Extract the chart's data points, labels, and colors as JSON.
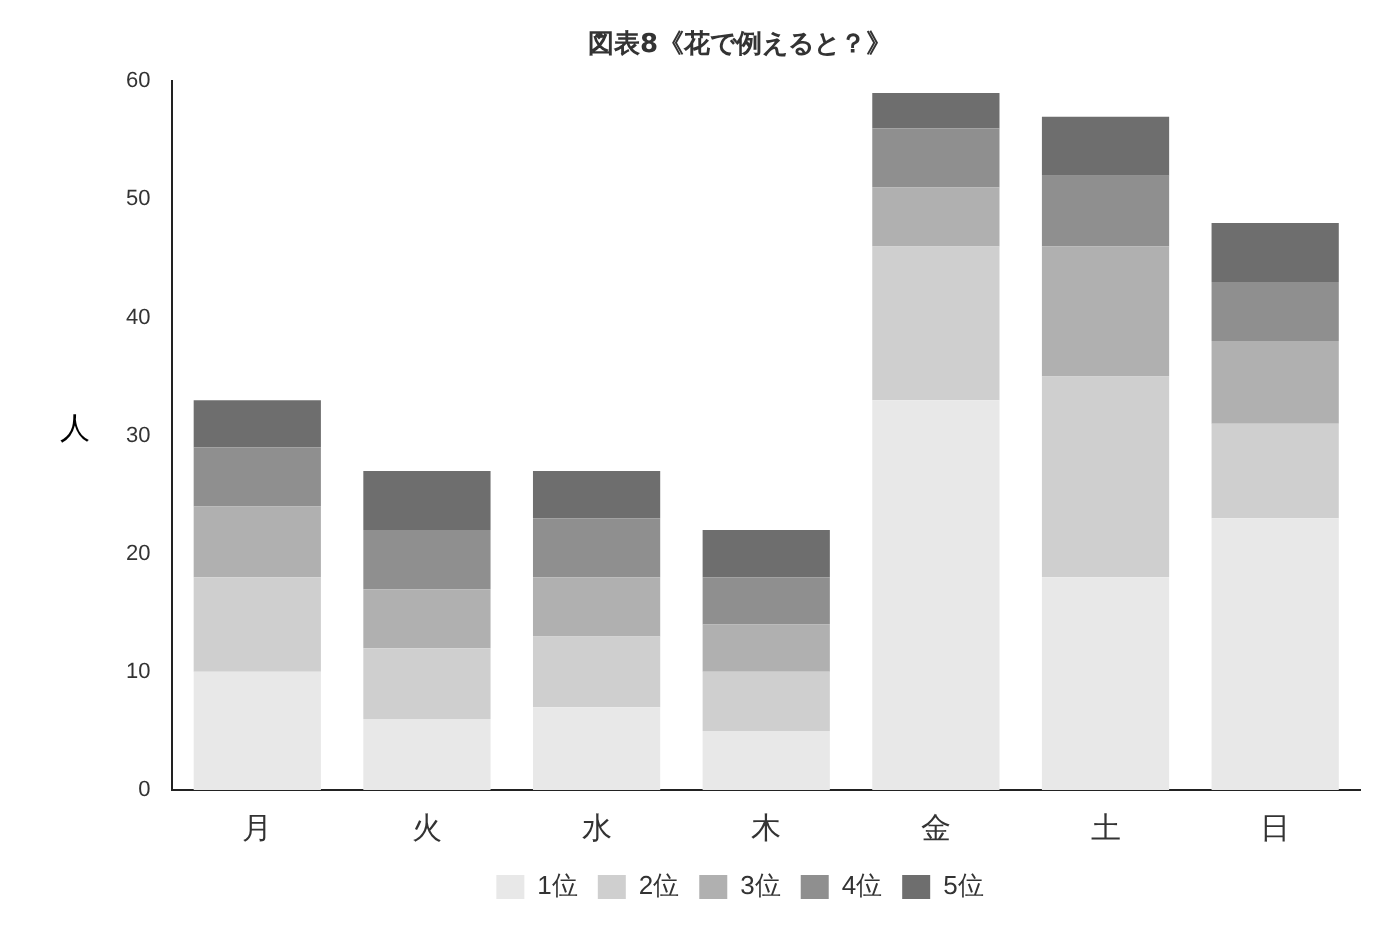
{
  "chart_data": {
    "type": "bar",
    "title": "図表8《花で例えると？》",
    "ylabel": "人",
    "categories": [
      "月",
      "火",
      "水",
      "木",
      "金",
      "土",
      "日"
    ],
    "stacked": true,
    "ylim": [
      0,
      60
    ],
    "yticks": [
      0,
      10,
      20,
      30,
      40,
      50,
      60
    ],
    "grid": false,
    "legend": "bottom",
    "series": [
      {
        "name": "1位",
        "color": "#e8e8e8",
        "values": [
          10,
          6,
          7,
          5,
          33,
          18,
          23
        ]
      },
      {
        "name": "2位",
        "color": "#cfcfcf",
        "values": [
          8,
          6,
          6,
          5,
          13,
          17,
          8
        ]
      },
      {
        "name": "3位",
        "color": "#b0b0b0",
        "values": [
          6,
          5,
          5,
          4,
          5,
          11,
          7
        ]
      },
      {
        "name": "4位",
        "color": "#8f8f8f",
        "values": [
          5,
          5,
          5,
          4,
          5,
          6,
          5
        ]
      },
      {
        "name": "5位",
        "color": "#6e6e6e",
        "values": [
          4,
          5,
          4,
          4,
          3,
          5,
          5
        ]
      }
    ]
  }
}
